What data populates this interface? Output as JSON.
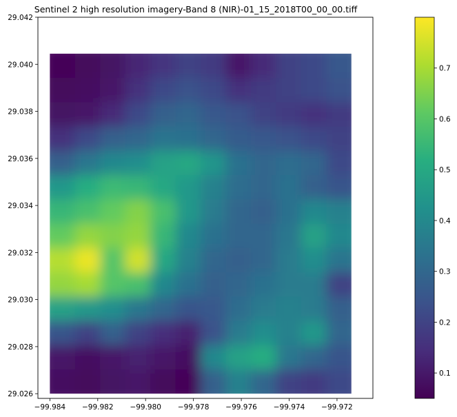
{
  "chart_data": {
    "type": "heatmap",
    "title": "Sentinel 2 high resolution imagery-Band 8 (NIR)-01_15_2018T00_00_00.tiff",
    "xlabel": "",
    "ylabel": "",
    "xlim": [
      -99.9845,
      -99.9705
    ],
    "ylim": [
      29.0258,
      29.042
    ],
    "data_extent": {
      "x": [
        -99.984,
        -99.9714
      ],
      "y": [
        29.026,
        29.04045
      ]
    },
    "x_ticks": [
      -99.984,
      -99.982,
      -99.98,
      -99.978,
      -99.976,
      -99.974,
      -99.972
    ],
    "x_tick_labels": [
      "−99.984",
      "−99.982",
      "−99.980",
      "−99.978",
      "−99.976",
      "−99.974",
      "−99.972"
    ],
    "y_ticks": [
      29.026,
      29.028,
      29.03,
      29.032,
      29.034,
      29.036,
      29.038,
      29.04,
      29.042
    ],
    "y_tick_labels": [
      "29.026",
      "29.028",
      "29.030",
      "29.032",
      "29.034",
      "29.036",
      "29.038",
      "29.040",
      "29.042"
    ],
    "grid": false,
    "colormap": "viridis",
    "colorbar": {
      "range": [
        0.05,
        0.8
      ],
      "ticks": [
        0.1,
        0.2,
        0.3,
        0.4,
        0.5,
        0.6,
        0.7
      ],
      "tick_labels": [
        "0.1",
        "0.2",
        "0.3",
        "0.4",
        "0.5",
        "0.6",
        "0.7"
      ]
    },
    "rows_top_to_bottom": 14,
    "cols_left_to_right": 12,
    "values": [
      [
        0.06,
        0.07,
        0.09,
        0.13,
        0.17,
        0.2,
        0.18,
        0.1,
        0.14,
        0.2,
        0.22,
        0.26
      ],
      [
        0.07,
        0.08,
        0.1,
        0.16,
        0.22,
        0.24,
        0.22,
        0.16,
        0.18,
        0.2,
        0.22,
        0.24
      ],
      [
        0.09,
        0.1,
        0.14,
        0.22,
        0.28,
        0.3,
        0.26,
        0.24,
        0.2,
        0.18,
        0.16,
        0.18
      ],
      [
        0.16,
        0.22,
        0.28,
        0.3,
        0.34,
        0.33,
        0.3,
        0.27,
        0.26,
        0.24,
        0.22,
        0.2
      ],
      [
        0.28,
        0.35,
        0.4,
        0.42,
        0.48,
        0.5,
        0.44,
        0.33,
        0.3,
        0.32,
        0.3,
        0.22
      ],
      [
        0.45,
        0.52,
        0.56,
        0.55,
        0.5,
        0.45,
        0.38,
        0.32,
        0.3,
        0.33,
        0.28,
        0.25
      ],
      [
        0.55,
        0.58,
        0.62,
        0.66,
        0.58,
        0.45,
        0.36,
        0.3,
        0.28,
        0.33,
        0.4,
        0.38
      ],
      [
        0.62,
        0.68,
        0.66,
        0.68,
        0.55,
        0.4,
        0.33,
        0.3,
        0.3,
        0.35,
        0.48,
        0.4
      ],
      [
        0.72,
        0.78,
        0.6,
        0.75,
        0.5,
        0.38,
        0.3,
        0.28,
        0.3,
        0.36,
        0.42,
        0.34
      ],
      [
        0.68,
        0.7,
        0.6,
        0.58,
        0.4,
        0.33,
        0.28,
        0.3,
        0.33,
        0.36,
        0.36,
        0.2
      ],
      [
        0.48,
        0.45,
        0.42,
        0.35,
        0.3,
        0.25,
        0.26,
        0.32,
        0.36,
        0.38,
        0.36,
        0.28
      ],
      [
        0.25,
        0.2,
        0.28,
        0.2,
        0.15,
        0.12,
        0.24,
        0.36,
        0.42,
        0.38,
        0.45,
        0.3
      ],
      [
        0.1,
        0.08,
        0.1,
        0.12,
        0.1,
        0.08,
        0.4,
        0.48,
        0.52,
        0.35,
        0.3,
        0.25
      ],
      [
        0.08,
        0.07,
        0.09,
        0.1,
        0.07,
        0.06,
        0.28,
        0.38,
        0.3,
        0.2,
        0.18,
        0.22
      ]
    ]
  }
}
